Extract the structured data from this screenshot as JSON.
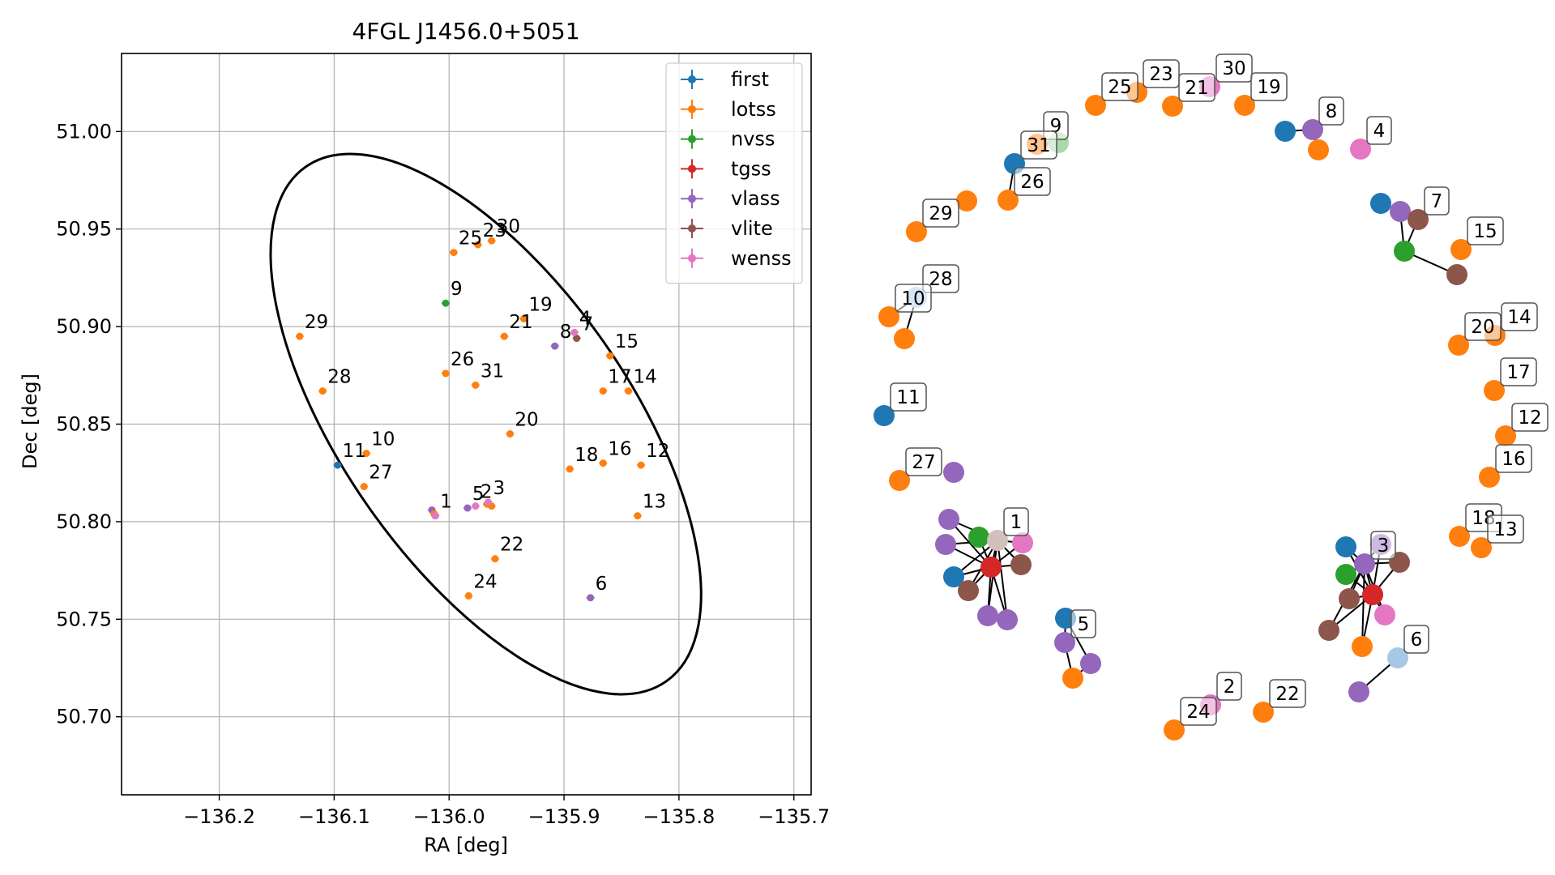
{
  "colors": {
    "first": "#1f77b4",
    "lotss": "#ff7f0e",
    "nvss": "#2ca02c",
    "tgss": "#d62728",
    "vlass": "#9467bd",
    "vlite": "#8c564b",
    "wenss": "#e377c2",
    "faded_first": "#a6c8e6",
    "faded_nvss": "#a9d8a9",
    "faded_vlite": "#d2c0bc"
  },
  "chart_data": [
    {
      "type": "scatter",
      "title": "4FGL J1456.0+5051",
      "xlabel": "RA [deg]",
      "ylabel": "Dec [deg]",
      "xlim": [
        -136.285,
        -135.685
      ],
      "ylim": [
        50.66,
        51.04
      ],
      "xticks": [
        -136.2,
        -136.1,
        -136.0,
        -135.9,
        -135.8,
        -135.7
      ],
      "xtick_labels": [
        "−136.2",
        "−136.1",
        "−136.0",
        "−135.9",
        "−135.8",
        "−135.7"
      ],
      "yticks": [
        50.7,
        50.75,
        50.8,
        50.85,
        50.9,
        50.95,
        51.0
      ],
      "ytick_labels": [
        "50.70",
        "50.75",
        "50.80",
        "50.85",
        "50.90",
        "50.95",
        "51.00"
      ],
      "grid": true,
      "legend_position": "top-right",
      "legend": [
        "first",
        "lotss",
        "nvss",
        "tgss",
        "vlass",
        "vlite",
        "wenss"
      ],
      "ellipse": {
        "center": [
          -135.968,
          50.85
        ],
        "semi_major_deg": 0.125,
        "semi_minor_deg": 0.161,
        "angle_deg": -35
      },
      "points": [
        {
          "survey": "lotss",
          "x": -136.13,
          "y": 50.895
        },
        {
          "survey": "lotss",
          "x": -136.11,
          "y": 50.867
        },
        {
          "survey": "first",
          "x": -136.097,
          "y": 50.829
        },
        {
          "survey": "lotss",
          "x": -136.072,
          "y": 50.835
        },
        {
          "survey": "lotss",
          "x": -136.074,
          "y": 50.818
        },
        {
          "survey": "vlass",
          "x": -136.015,
          "y": 50.806
        },
        {
          "survey": "vlass",
          "x": -136.012,
          "y": 50.803
        },
        {
          "survey": "lotss",
          "x": -136.013,
          "y": 50.804
        },
        {
          "survey": "wenss",
          "x": -136.012,
          "y": 50.803
        },
        {
          "survey": "vlass",
          "x": -135.984,
          "y": 50.807
        },
        {
          "survey": "wenss",
          "x": -135.977,
          "y": 50.808
        },
        {
          "survey": "lotss",
          "x": -135.967,
          "y": 50.809
        },
        {
          "survey": "lotss",
          "x": -135.963,
          "y": 50.808
        },
        {
          "survey": "wenss",
          "x": -135.966,
          "y": 50.81
        },
        {
          "survey": "lotss",
          "x": -135.96,
          "y": 50.781
        },
        {
          "survey": "lotss",
          "x": -135.983,
          "y": 50.762
        },
        {
          "survey": "vlass",
          "x": -135.877,
          "y": 50.761
        },
        {
          "survey": "lotss",
          "x": -136.003,
          "y": 50.876
        },
        {
          "survey": "lotss",
          "x": -135.977,
          "y": 50.87
        },
        {
          "survey": "lotss",
          "x": -135.947,
          "y": 50.845
        },
        {
          "survey": "lotss",
          "x": -135.895,
          "y": 50.827
        },
        {
          "survey": "lotss",
          "x": -135.866,
          "y": 50.83
        },
        {
          "survey": "lotss",
          "x": -135.833,
          "y": 50.829
        },
        {
          "survey": "lotss",
          "x": -135.836,
          "y": 50.803
        },
        {
          "survey": "lotss",
          "x": -135.866,
          "y": 50.867
        },
        {
          "survey": "lotss",
          "x": -135.844,
          "y": 50.867
        },
        {
          "survey": "lotss",
          "x": -135.86,
          "y": 50.885
        },
        {
          "survey": "lotss",
          "x": -135.952,
          "y": 50.895
        },
        {
          "survey": "lotss",
          "x": -135.935,
          "y": 50.904
        },
        {
          "survey": "lotss",
          "x": -135.996,
          "y": 50.938
        },
        {
          "survey": "lotss",
          "x": -135.975,
          "y": 50.942
        },
        {
          "survey": "lotss",
          "x": -135.963,
          "y": 50.944
        },
        {
          "survey": "nvss",
          "x": -136.003,
          "y": 50.912
        },
        {
          "survey": "vlass",
          "x": -135.908,
          "y": 50.89
        },
        {
          "survey": "vlite",
          "x": -135.889,
          "y": 50.894
        },
        {
          "survey": "wenss",
          "x": -135.891,
          "y": 50.897
        }
      ],
      "labels": [
        {
          "text": "29",
          "x": -136.13,
          "y": 50.895
        },
        {
          "text": "28",
          "x": -136.11,
          "y": 50.867
        },
        {
          "text": "11",
          "x": -136.097,
          "y": 50.829
        },
        {
          "text": "10",
          "x": -136.072,
          "y": 50.835
        },
        {
          "text": "27",
          "x": -136.074,
          "y": 50.818
        },
        {
          "text": "1",
          "x": -136.012,
          "y": 50.803
        },
        {
          "text": "5",
          "x": -135.984,
          "y": 50.807
        },
        {
          "text": "2",
          "x": -135.977,
          "y": 50.808
        },
        {
          "text": "3",
          "x": -135.966,
          "y": 50.81
        },
        {
          "text": "22",
          "x": -135.96,
          "y": 50.781
        },
        {
          "text": "24",
          "x": -135.983,
          "y": 50.762
        },
        {
          "text": "6",
          "x": -135.877,
          "y": 50.761
        },
        {
          "text": "26",
          "x": -136.003,
          "y": 50.876
        },
        {
          "text": "31",
          "x": -135.977,
          "y": 50.87
        },
        {
          "text": "20",
          "x": -135.947,
          "y": 50.845
        },
        {
          "text": "18",
          "x": -135.895,
          "y": 50.827
        },
        {
          "text": "16",
          "x": -135.866,
          "y": 50.83
        },
        {
          "text": "12",
          "x": -135.833,
          "y": 50.829
        },
        {
          "text": "13",
          "x": -135.836,
          "y": 50.803
        },
        {
          "text": "17",
          "x": -135.866,
          "y": 50.867
        },
        {
          "text": "14",
          "x": -135.844,
          "y": 50.867
        },
        {
          "text": "15",
          "x": -135.86,
          "y": 50.885
        },
        {
          "text": "21",
          "x": -135.952,
          "y": 50.895
        },
        {
          "text": "19",
          "x": -135.935,
          "y": 50.904
        },
        {
          "text": "25",
          "x": -135.996,
          "y": 50.938
        },
        {
          "text": "23",
          "x": -135.975,
          "y": 50.942
        },
        {
          "text": "30",
          "x": -135.963,
          "y": 50.944
        },
        {
          "text": "9",
          "x": -136.003,
          "y": 50.912
        },
        {
          "text": "8",
          "x": -135.908,
          "y": 50.89
        },
        {
          "text": "7",
          "x": -135.889,
          "y": 50.894
        },
        {
          "text": "4",
          "x": -135.891,
          "y": 50.897
        }
      ]
    },
    {
      "type": "network",
      "nodes": [
        {
          "id": 0,
          "survey": "lotss",
          "label": "25"
        },
        {
          "id": 1,
          "survey": "lotss",
          "label": "23"
        },
        {
          "id": 2,
          "survey": "lotss",
          "label": "21"
        },
        {
          "id": 3,
          "survey": "wenss",
          "label": "30"
        },
        {
          "id": 4,
          "survey": "lotss",
          "label": "19"
        },
        {
          "id": 5,
          "survey": "first",
          "label": ""
        },
        {
          "id": 6,
          "survey": "vlass",
          "label": "8"
        },
        {
          "id": 7,
          "survey": "lotss",
          "label": ""
        },
        {
          "id": 8,
          "survey": "wenss",
          "label": "4"
        },
        {
          "id": 9,
          "survey": "lotss",
          "label": "9"
        },
        {
          "id": 10,
          "survey": "faded_nvss",
          "label": ""
        },
        {
          "id": 11,
          "survey": "first",
          "label": "31"
        },
        {
          "id": 12,
          "survey": "lotss",
          "label": "26"
        },
        {
          "id": 13,
          "survey": "lotss",
          "label": ""
        },
        {
          "id": 14,
          "survey": "lotss",
          "label": "29"
        },
        {
          "id": 15,
          "survey": "first",
          "label": ""
        },
        {
          "id": 16,
          "survey": "vlass",
          "label": ""
        },
        {
          "id": 17,
          "survey": "vlite",
          "label": "7"
        },
        {
          "id": 18,
          "survey": "nvss",
          "label": ""
        },
        {
          "id": 19,
          "survey": "vlite",
          "label": ""
        },
        {
          "id": 20,
          "survey": "lotss",
          "label": "15"
        },
        {
          "id": 21,
          "survey": "faded_first",
          "label": "28"
        },
        {
          "id": 22,
          "survey": "lotss",
          "label": "10"
        },
        {
          "id": 23,
          "survey": "lotss",
          "label": ""
        },
        {
          "id": 24,
          "survey": "lotss",
          "label": "20"
        },
        {
          "id": 25,
          "survey": "lotss",
          "label": "14"
        },
        {
          "id": 26,
          "survey": "lotss",
          "label": "17"
        },
        {
          "id": 27,
          "survey": "first",
          "label": "11"
        },
        {
          "id": 28,
          "survey": "lotss",
          "label": "12"
        },
        {
          "id": 29,
          "survey": "lotss",
          "label": "16"
        },
        {
          "id": 30,
          "survey": "lotss",
          "label": "27"
        },
        {
          "id": 31,
          "survey": "vlass",
          "label": ""
        },
        {
          "id": 32,
          "survey": "lotss",
          "label": "18"
        },
        {
          "id": 33,
          "survey": "lotss",
          "label": "13"
        },
        {
          "id": 34,
          "survey": "vlass",
          "label": ""
        },
        {
          "id": 35,
          "survey": "vlass",
          "label": ""
        },
        {
          "id": 36,
          "survey": "nvss",
          "label": ""
        },
        {
          "id": 37,
          "survey": "faded_vlite",
          "label": "1"
        },
        {
          "id": 38,
          "survey": "wenss",
          "label": ""
        },
        {
          "id": 39,
          "survey": "tgss",
          "label": ""
        },
        {
          "id": 40,
          "survey": "first",
          "label": ""
        },
        {
          "id": 41,
          "survey": "vlite",
          "label": ""
        },
        {
          "id": 42,
          "survey": "vlite",
          "label": ""
        },
        {
          "id": 43,
          "survey": "vlass",
          "label": ""
        },
        {
          "id": 44,
          "survey": "vlass",
          "label": ""
        },
        {
          "id": 45,
          "survey": "first",
          "label": ""
        },
        {
          "id": 46,
          "survey": "vlass",
          "label": "5"
        },
        {
          "id": 47,
          "survey": "vlass",
          "label": ""
        },
        {
          "id": 48,
          "survey": "lotss",
          "label": ""
        },
        {
          "id": 49,
          "survey": "first",
          "label": ""
        },
        {
          "id": 50,
          "survey": "vlass",
          "label": ""
        },
        {
          "id": 51,
          "survey": "nvss",
          "label": ""
        },
        {
          "id": 52,
          "survey": "vlass",
          "label": "3"
        },
        {
          "id": 53,
          "survey": "vlite",
          "label": ""
        },
        {
          "id": 54,
          "survey": "tgss",
          "label": ""
        },
        {
          "id": 55,
          "survey": "vlite",
          "label": ""
        },
        {
          "id": 56,
          "survey": "wenss",
          "label": ""
        },
        {
          "id": 57,
          "survey": "vlite",
          "label": ""
        },
        {
          "id": 58,
          "survey": "lotss",
          "label": ""
        },
        {
          "id": 59,
          "survey": "faded_first",
          "label": "6"
        },
        {
          "id": 60,
          "survey": "vlass",
          "label": ""
        },
        {
          "id": 61,
          "survey": "lotss",
          "label": "24"
        },
        {
          "id": 62,
          "survey": "wenss",
          "label": "2"
        },
        {
          "id": 63,
          "survey": "lotss",
          "label": "22"
        }
      ],
      "edges": [
        [
          5,
          6
        ],
        [
          6,
          7
        ],
        [
          9,
          10
        ],
        [
          11,
          12
        ],
        [
          16,
          18
        ],
        [
          17,
          18
        ],
        [
          18,
          19
        ],
        [
          21,
          22
        ],
        [
          21,
          23
        ],
        [
          37,
          34
        ],
        [
          37,
          35
        ],
        [
          37,
          36
        ],
        [
          37,
          38
        ],
        [
          37,
          39
        ],
        [
          37,
          40
        ],
        [
          37,
          41
        ],
        [
          37,
          42
        ],
        [
          37,
          43
        ],
        [
          37,
          44
        ],
        [
          39,
          34
        ],
        [
          39,
          35
        ],
        [
          39,
          36
        ],
        [
          39,
          38
        ],
        [
          39,
          40
        ],
        [
          39,
          41
        ],
        [
          39,
          42
        ],
        [
          39,
          43
        ],
        [
          39,
          44
        ],
        [
          45,
          46
        ],
        [
          46,
          48
        ],
        [
          47,
          48
        ],
        [
          45,
          47
        ],
        [
          52,
          49
        ],
        [
          52,
          50
        ],
        [
          52,
          51
        ],
        [
          52,
          53
        ],
        [
          52,
          54
        ],
        [
          52,
          55
        ],
        [
          52,
          56
        ],
        [
          52,
          57
        ],
        [
          52,
          58
        ],
        [
          54,
          49
        ],
        [
          54,
          50
        ],
        [
          54,
          51
        ],
        [
          54,
          53
        ],
        [
          54,
          55
        ],
        [
          54,
          56
        ],
        [
          54,
          57
        ],
        [
          54,
          58
        ],
        [
          59,
          60
        ]
      ]
    }
  ]
}
